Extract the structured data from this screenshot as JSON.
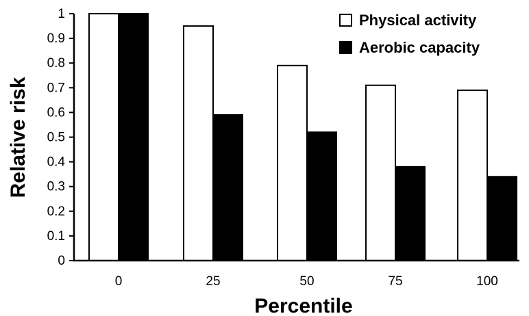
{
  "chart_data": {
    "type": "bar",
    "categories": [
      "0",
      "25",
      "50",
      "75",
      "100"
    ],
    "series": [
      {
        "name": "Physical activity",
        "values": [
          1.0,
          0.95,
          0.79,
          0.71,
          0.69
        ],
        "color": "#ffffff"
      },
      {
        "name": "Aerobic capacity",
        "values": [
          1.0,
          0.59,
          0.52,
          0.38,
          0.34
        ],
        "color": "#000000"
      }
    ],
    "title": "",
    "xlabel": "Percentile",
    "ylabel": "Relative risk",
    "ylim": [
      0,
      1
    ],
    "yticks": [
      "0",
      "0.1",
      "0.2",
      "0.3",
      "0.4",
      "0.5",
      "0.6",
      "0.7",
      "0.8",
      "0.9",
      "1"
    ],
    "grid": false,
    "legend_position": "top-right"
  }
}
